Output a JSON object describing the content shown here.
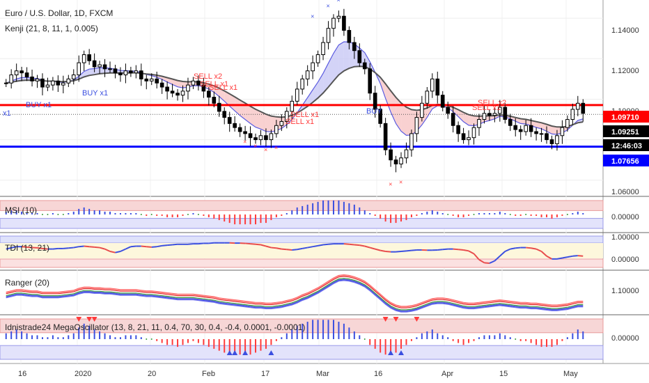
{
  "colors": {
    "bull": "#ffffff",
    "bear": "#000000",
    "resistance": "#ff0000",
    "support": "#0000ff",
    "buy": "#3b4fe0",
    "sell": "#ff3b3b",
    "fast": "#5b5be0",
    "slow": "#555555",
    "cloudBull": "#c8c8f5",
    "cloudBear": "#f7c6c6"
  },
  "header": {
    "title": "Euro / U.S. Dollar, 1D, FXCM",
    "indicator": "Kenji (21, 8, 11, 1, 0.005)"
  },
  "panes": {
    "msi": "MSI (10)",
    "tdi": "TDI (13, 21)",
    "ranger": "Ranger (20)",
    "mega": "Idnistrade24 MegaOscillator (13, 8, 21, 11, 0.4, 70, 30, 0.4, -0.4, 0.0001, -0.0001)"
  },
  "price_axis": {
    "ticks": [
      "1.14000",
      "1.12000",
      "1.10000",
      "1.06000"
    ],
    "resistance_label": "1.09710",
    "current_label": "1.09251",
    "time_label": "12:46:03",
    "support_label": "1.07656"
  },
  "pane_axis": {
    "msi": [
      "0.00000"
    ],
    "tdi": [
      "1.00000",
      "0.00000"
    ],
    "ranger": [
      "1.10000"
    ],
    "mega": [
      "0.00000"
    ]
  },
  "signals": [
    {
      "text": "x1",
      "kind": "buy"
    },
    {
      "text": "BUY x1",
      "kind": "buy"
    },
    {
      "text": "BUY x1",
      "kind": "buy"
    },
    {
      "text": "SELL x2",
      "kind": "sell"
    },
    {
      "text": "SELL x1",
      "kind": "sell"
    },
    {
      "text": "SELL x1",
      "kind": "sell"
    },
    {
      "text": "SELL x1",
      "kind": "sell"
    },
    {
      "text": "SELL x1",
      "kind": "sell"
    },
    {
      "text": "BUY",
      "kind": "buy"
    },
    {
      "text": "SELL x2",
      "kind": "sell"
    },
    {
      "text": "SELL x1",
      "kind": "sell"
    }
  ],
  "chart_data": {
    "type": "candlestick",
    "title": "Euro / U.S. Dollar, 1D, FXCM",
    "x_labels": [
      "16",
      "2020",
      "20",
      "Feb",
      "17",
      "Mar",
      "16",
      "Apr",
      "15",
      "May"
    ],
    "y_range": [
      1.052,
      1.149
    ],
    "resistance": 1.0971,
    "support": 1.07656,
    "last": 1.09251,
    "close": [
      1.108,
      1.112,
      1.114,
      1.113,
      1.111,
      1.109,
      1.11,
      1.106,
      1.107,
      1.109,
      1.107,
      1.108,
      1.11,
      1.112,
      1.118,
      1.122,
      1.119,
      1.116,
      1.117,
      1.115,
      1.115,
      1.113,
      1.112,
      1.114,
      1.113,
      1.114,
      1.11,
      1.109,
      1.11,
      1.108,
      1.106,
      1.104,
      1.103,
      1.102,
      1.104,
      1.107,
      1.109,
      1.107,
      1.104,
      1.101,
      1.098,
      1.094,
      1.091,
      1.088,
      1.086,
      1.084,
      1.083,
      1.081,
      1.08,
      1.082,
      1.08,
      1.083,
      1.087,
      1.089,
      1.094,
      1.099,
      1.105,
      1.11,
      1.114,
      1.118,
      1.122,
      1.128,
      1.135,
      1.14,
      1.141,
      1.134,
      1.128,
      1.124,
      1.118,
      1.115,
      1.103,
      1.095,
      1.088,
      1.075,
      1.07,
      1.068,
      1.071,
      1.075,
      1.083,
      1.091,
      1.098,
      1.104,
      1.11,
      1.102,
      1.096,
      1.093,
      1.087,
      1.083,
      1.08,
      1.081,
      1.086,
      1.09,
      1.093,
      1.092,
      1.093,
      1.096,
      1.09,
      1.087,
      1.085,
      1.084,
      1.087,
      1.084,
      1.083,
      1.083,
      1.08,
      1.078,
      1.082,
      1.086,
      1.09,
      1.095,
      1.098,
      1.093
    ],
    "series": [
      {
        "name": "MSI (10)",
        "pane": "msi",
        "values": [
          0.2,
          0.3,
          0.3,
          0.2,
          0.1,
          0.1,
          0.1,
          0.0,
          0.0,
          0.1,
          0.0,
          0.0,
          0.1,
          0.2,
          0.4,
          0.5,
          0.4,
          0.3,
          0.3,
          0.2,
          0.2,
          0.1,
          0.1,
          0.1,
          0.1,
          0.1,
          0.0,
          -0.1,
          0.0,
          -0.1,
          -0.1,
          -0.2,
          -0.2,
          -0.2,
          -0.1,
          0.0,
          0.1,
          0.0,
          -0.1,
          -0.2,
          -0.3,
          -0.4,
          -0.5,
          -0.6,
          -0.7,
          -0.7,
          -0.7,
          -0.7,
          -0.7,
          -0.6,
          -0.6,
          -0.4,
          -0.2,
          -0.1,
          0.1,
          0.3,
          0.5,
          0.6,
          0.7,
          0.8,
          0.9,
          1.0,
          1.0,
          1.0,
          1.0,
          0.9,
          0.8,
          0.7,
          0.5,
          0.3,
          0.1,
          -0.1,
          -0.3,
          -0.5,
          -0.6,
          -0.6,
          -0.5,
          -0.4,
          -0.2,
          -0.1,
          0.1,
          0.2,
          0.3,
          0.2,
          0.1,
          0.0,
          -0.1,
          -0.2,
          -0.2,
          -0.1,
          0.0,
          0.1,
          0.1,
          0.1,
          0.1,
          0.2,
          0.1,
          0.0,
          -0.1,
          -0.1,
          0.0,
          -0.1,
          -0.1,
          -0.2,
          -0.2,
          -0.3,
          -0.2,
          -0.1,
          0.0,
          0.1,
          0.2,
          0.1
        ]
      },
      {
        "name": "TDI (13, 21)",
        "pane": "tdi",
        "values": [
          0.6,
          0.65,
          0.7,
          0.7,
          0.68,
          0.66,
          0.65,
          0.62,
          0.6,
          0.6,
          0.62,
          0.62,
          0.64,
          0.66,
          0.7,
          0.72,
          0.7,
          0.68,
          0.66,
          0.6,
          0.5,
          0.45,
          0.5,
          0.6,
          0.7,
          0.72,
          0.72,
          0.7,
          0.68,
          0.7,
          0.74,
          0.76,
          0.78,
          0.8,
          0.8,
          0.8,
          0.82,
          0.82,
          0.84,
          0.84,
          0.86,
          0.86,
          0.86,
          0.86,
          0.85,
          0.85,
          0.84,
          0.82,
          0.8,
          0.78,
          0.72,
          0.66,
          0.64,
          0.6,
          0.58,
          0.56,
          0.58,
          0.62,
          0.66,
          0.7,
          0.74,
          0.78,
          0.8,
          0.82,
          0.82,
          0.82,
          0.8,
          0.78,
          0.76,
          0.72,
          0.66,
          0.6,
          0.54,
          0.5,
          0.48,
          0.48,
          0.5,
          0.52,
          0.54,
          0.56,
          0.56,
          0.55,
          0.55,
          0.56,
          0.58,
          0.6,
          0.6,
          0.58,
          0.56,
          0.52,
          0.4,
          0.15,
          0.02,
          0.0,
          0.1,
          0.3,
          0.5,
          0.6,
          0.64,
          0.66,
          0.66,
          0.64,
          0.6,
          0.5,
          0.3,
          0.18,
          0.18,
          0.22,
          0.26,
          0.3,
          0.32,
          0.3
        ]
      },
      {
        "name": "Ranger (20)",
        "pane": "ranger",
        "values": [
          1.104,
          1.106,
          1.108,
          1.108,
          1.107,
          1.106,
          1.106,
          1.104,
          1.104,
          1.104,
          1.104,
          1.105,
          1.106,
          1.107,
          1.11,
          1.112,
          1.112,
          1.111,
          1.111,
          1.11,
          1.11,
          1.109,
          1.108,
          1.108,
          1.108,
          1.108,
          1.107,
          1.106,
          1.106,
          1.105,
          1.104,
          1.103,
          1.102,
          1.101,
          1.101,
          1.101,
          1.101,
          1.1,
          1.099,
          1.098,
          1.097,
          1.095,
          1.094,
          1.093,
          1.092,
          1.091,
          1.09,
          1.089,
          1.088,
          1.088,
          1.087,
          1.087,
          1.088,
          1.089,
          1.091,
          1.093,
          1.096,
          1.1,
          1.103,
          1.107,
          1.111,
          1.116,
          1.121,
          1.126,
          1.13,
          1.131,
          1.13,
          1.128,
          1.125,
          1.121,
          1.115,
          1.108,
          1.101,
          1.094,
          1.088,
          1.084,
          1.082,
          1.082,
          1.083,
          1.085,
          1.088,
          1.091,
          1.094,
          1.095,
          1.095,
          1.094,
          1.092,
          1.09,
          1.088,
          1.087,
          1.087,
          1.088,
          1.089,
          1.09,
          1.091,
          1.092,
          1.091,
          1.09,
          1.089,
          1.088,
          1.088,
          1.087,
          1.087,
          1.086,
          1.085,
          1.084,
          1.084,
          1.085,
          1.086,
          1.088,
          1.09,
          1.09
        ]
      },
      {
        "name": "MegaOscillator",
        "pane": "mega",
        "values": [
          0.3,
          0.4,
          0.5,
          0.4,
          0.3,
          0.2,
          0.2,
          0.1,
          0.1,
          0.2,
          0.1,
          0.1,
          0.2,
          0.3,
          0.6,
          0.8,
          0.7,
          0.5,
          0.4,
          0.3,
          0.2,
          0.1,
          0.1,
          0.2,
          0.2,
          0.2,
          0.1,
          0.0,
          0.0,
          -0.1,
          -0.2,
          -0.3,
          -0.3,
          -0.4,
          -0.3,
          -0.2,
          -0.1,
          -0.2,
          -0.3,
          -0.4,
          -0.5,
          -0.6,
          -0.7,
          -0.7,
          -0.8,
          -0.8,
          -0.8,
          -0.8,
          -0.7,
          -0.6,
          -0.5,
          -0.3,
          -0.1,
          0.1,
          0.3,
          0.5,
          0.7,
          0.8,
          0.9,
          1.0,
          1.0,
          1.0,
          1.0,
          1.0,
          0.9,
          0.8,
          0.6,
          0.4,
          0.2,
          0.0,
          -0.3,
          -0.5,
          -0.7,
          -0.8,
          -0.8,
          -0.7,
          -0.5,
          -0.3,
          -0.1,
          0.1,
          0.3,
          0.4,
          0.5,
          0.3,
          0.2,
          0.1,
          -0.1,
          -0.2,
          -0.3,
          -0.2,
          -0.1,
          0.1,
          0.2,
          0.2,
          0.2,
          0.3,
          0.2,
          0.1,
          0.0,
          -0.1,
          -0.1,
          -0.2,
          -0.3,
          -0.4,
          -0.4,
          -0.4,
          -0.3,
          -0.1,
          0.1,
          0.3,
          0.5,
          0.4
        ]
      }
    ]
  }
}
